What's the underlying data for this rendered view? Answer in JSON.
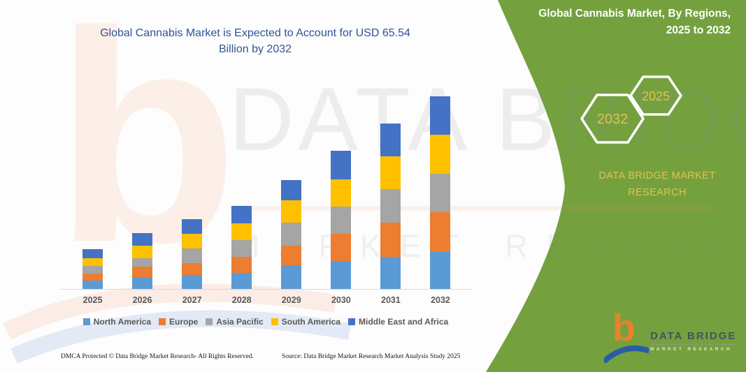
{
  "page": {
    "title_line1": "Global Cannabis Market is Expected to Account for USD 65.54",
    "title_line2": "Billion by 2032"
  },
  "chart_data": {
    "type": "bar",
    "stacked": true,
    "title": "Global Cannabis Market is Expected to Account for USD 65.54 Billion by 2032",
    "xlabel": "",
    "ylabel": "",
    "unit": "USD Billion (estimated from bar heights; 2032 total = 65.54)",
    "categories": [
      "2025",
      "2026",
      "2027",
      "2028",
      "2029",
      "2030",
      "2031",
      "2032"
    ],
    "series": [
      {
        "name": "North America",
        "color": "#5B9BD5",
        "values": [
          3.0,
          4.2,
          5.0,
          5.7,
          8.3,
          9.7,
          11.0,
          12.8
        ]
      },
      {
        "name": "Europe",
        "color": "#ED7D31",
        "values": [
          2.5,
          3.5,
          4.0,
          5.5,
          6.7,
          9.2,
          11.8,
          13.4
        ]
      },
      {
        "name": "Asia Pacific",
        "color": "#A5A5A5",
        "values": [
          2.6,
          2.9,
          4.9,
          5.5,
          7.6,
          9.3,
          11.3,
          13.0
        ]
      },
      {
        "name": "South America",
        "color": "#FFC000",
        "values": [
          2.6,
          4.3,
          5.1,
          5.7,
          7.6,
          9.1,
          11.0,
          13.2
        ]
      },
      {
        "name": "Middle East and Africa",
        "color": "#4472C4",
        "values": [
          3.1,
          4.2,
          5.0,
          5.9,
          6.9,
          9.7,
          11.3,
          13.1
        ]
      }
    ],
    "totals": [
      13.8,
      19.1,
      24.0,
      28.3,
      37.1,
      47.0,
      56.4,
      65.5
    ],
    "legend_position": "bottom",
    "y_axis_visible": false,
    "gridlines": false
  },
  "side_panel": {
    "bg_color": "#74a13e",
    "title_line1": "Global Cannabis Market, By Regions,",
    "title_line2": "2025 to 2032",
    "hexagon_back_label": "2032",
    "hexagon_front_label": "2025",
    "gold_color": "#dfc254",
    "brand_line1": "DATA BRIDGE MARKET",
    "brand_line2": "RESEARCH"
  },
  "logo": {
    "letter": "b",
    "title": "DATA BRIDGE",
    "subtitle": "MARKET RESEARCH"
  },
  "watermark": {
    "letter": "b",
    "line1": "DATA BRIDGE",
    "line2": "MARKET RESEARCH"
  },
  "footer": {
    "left": "DMCA Protected © Data Bridge Market Research-  All Rights Reserved.",
    "right": "Source: Data Bridge Market Research  Market Analysis Study 2025"
  }
}
